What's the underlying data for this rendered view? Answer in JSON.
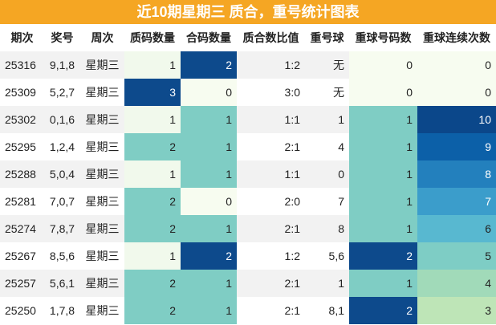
{
  "title": "近10期星期三 质合，重号统计图表",
  "table": {
    "header": [
      "期次",
      "奖号",
      "周次",
      "质码数量",
      "合码数量",
      "质合数比值",
      "重号球",
      "重球号码数",
      "重球连续次数"
    ],
    "rows": [
      [
        "25316",
        "9,1,8",
        "星期三",
        "1",
        "2",
        "1:2",
        "无",
        "0",
        "0"
      ],
      [
        "25309",
        "5,2,7",
        "星期三",
        "3",
        "0",
        "3:0",
        "无",
        "0",
        "0"
      ],
      [
        "25302",
        "0,1,6",
        "星期三",
        "1",
        "1",
        "1:1",
        "1",
        "1",
        "10"
      ],
      [
        "25295",
        "1,2,4",
        "星期三",
        "2",
        "1",
        "2:1",
        "4",
        "1",
        "9"
      ],
      [
        "25288",
        "5,0,4",
        "星期三",
        "1",
        "1",
        "1:1",
        "0",
        "1",
        "8"
      ],
      [
        "25281",
        "7,0,7",
        "星期三",
        "2",
        "0",
        "2:0",
        "7",
        "1",
        "7"
      ],
      [
        "25274",
        "7,8,7",
        "星期三",
        "2",
        "1",
        "2:1",
        "8",
        "1",
        "6"
      ],
      [
        "25267",
        "8,5,6",
        "星期三",
        "1",
        "2",
        "1:2",
        "5,6",
        "2",
        "5"
      ],
      [
        "25257",
        "5,6,1",
        "星期三",
        "2",
        "1",
        "2:1",
        "1",
        "1",
        "4"
      ],
      [
        "25250",
        "1,7,8",
        "星期三",
        "2",
        "1",
        "2:1",
        "8,1",
        "2",
        "3"
      ]
    ],
    "fills": [
      [
        "#f1f9ec",
        "#0d4a8c",
        "#f7fcf0",
        "#f7fcf0"
      ],
      [
        "#0d4a8c",
        "#f7fcf0",
        "#f7fcf0",
        "#f7fcf0"
      ],
      [
        "#f1f9ec",
        "#7fcdc4",
        "#7fcdc4",
        "#0b478a"
      ],
      [
        "#7fcdc4",
        "#7fcdc4",
        "#7fcdc4",
        "#0c60a8"
      ],
      [
        "#f1f9ec",
        "#7fcdc4",
        "#7fcdc4",
        "#2380bd"
      ],
      [
        "#7fcdc4",
        "#f7fcf0",
        "#7fcdc4",
        "#3b9dcb"
      ],
      [
        "#7fcdc4",
        "#7fcdc4",
        "#7fcdc4",
        "#58b8d0"
      ],
      [
        "#f1f9ec",
        "#0d4a8c",
        "#0d4a8c",
        "#7ecdc5"
      ],
      [
        "#7fcdc4",
        "#7fcdc4",
        "#7fcdc4",
        "#a1dab9"
      ],
      [
        "#7fcdc4",
        "#7fcdc4",
        "#0d4a8c",
        "#bee5b7"
      ]
    ]
  }
}
